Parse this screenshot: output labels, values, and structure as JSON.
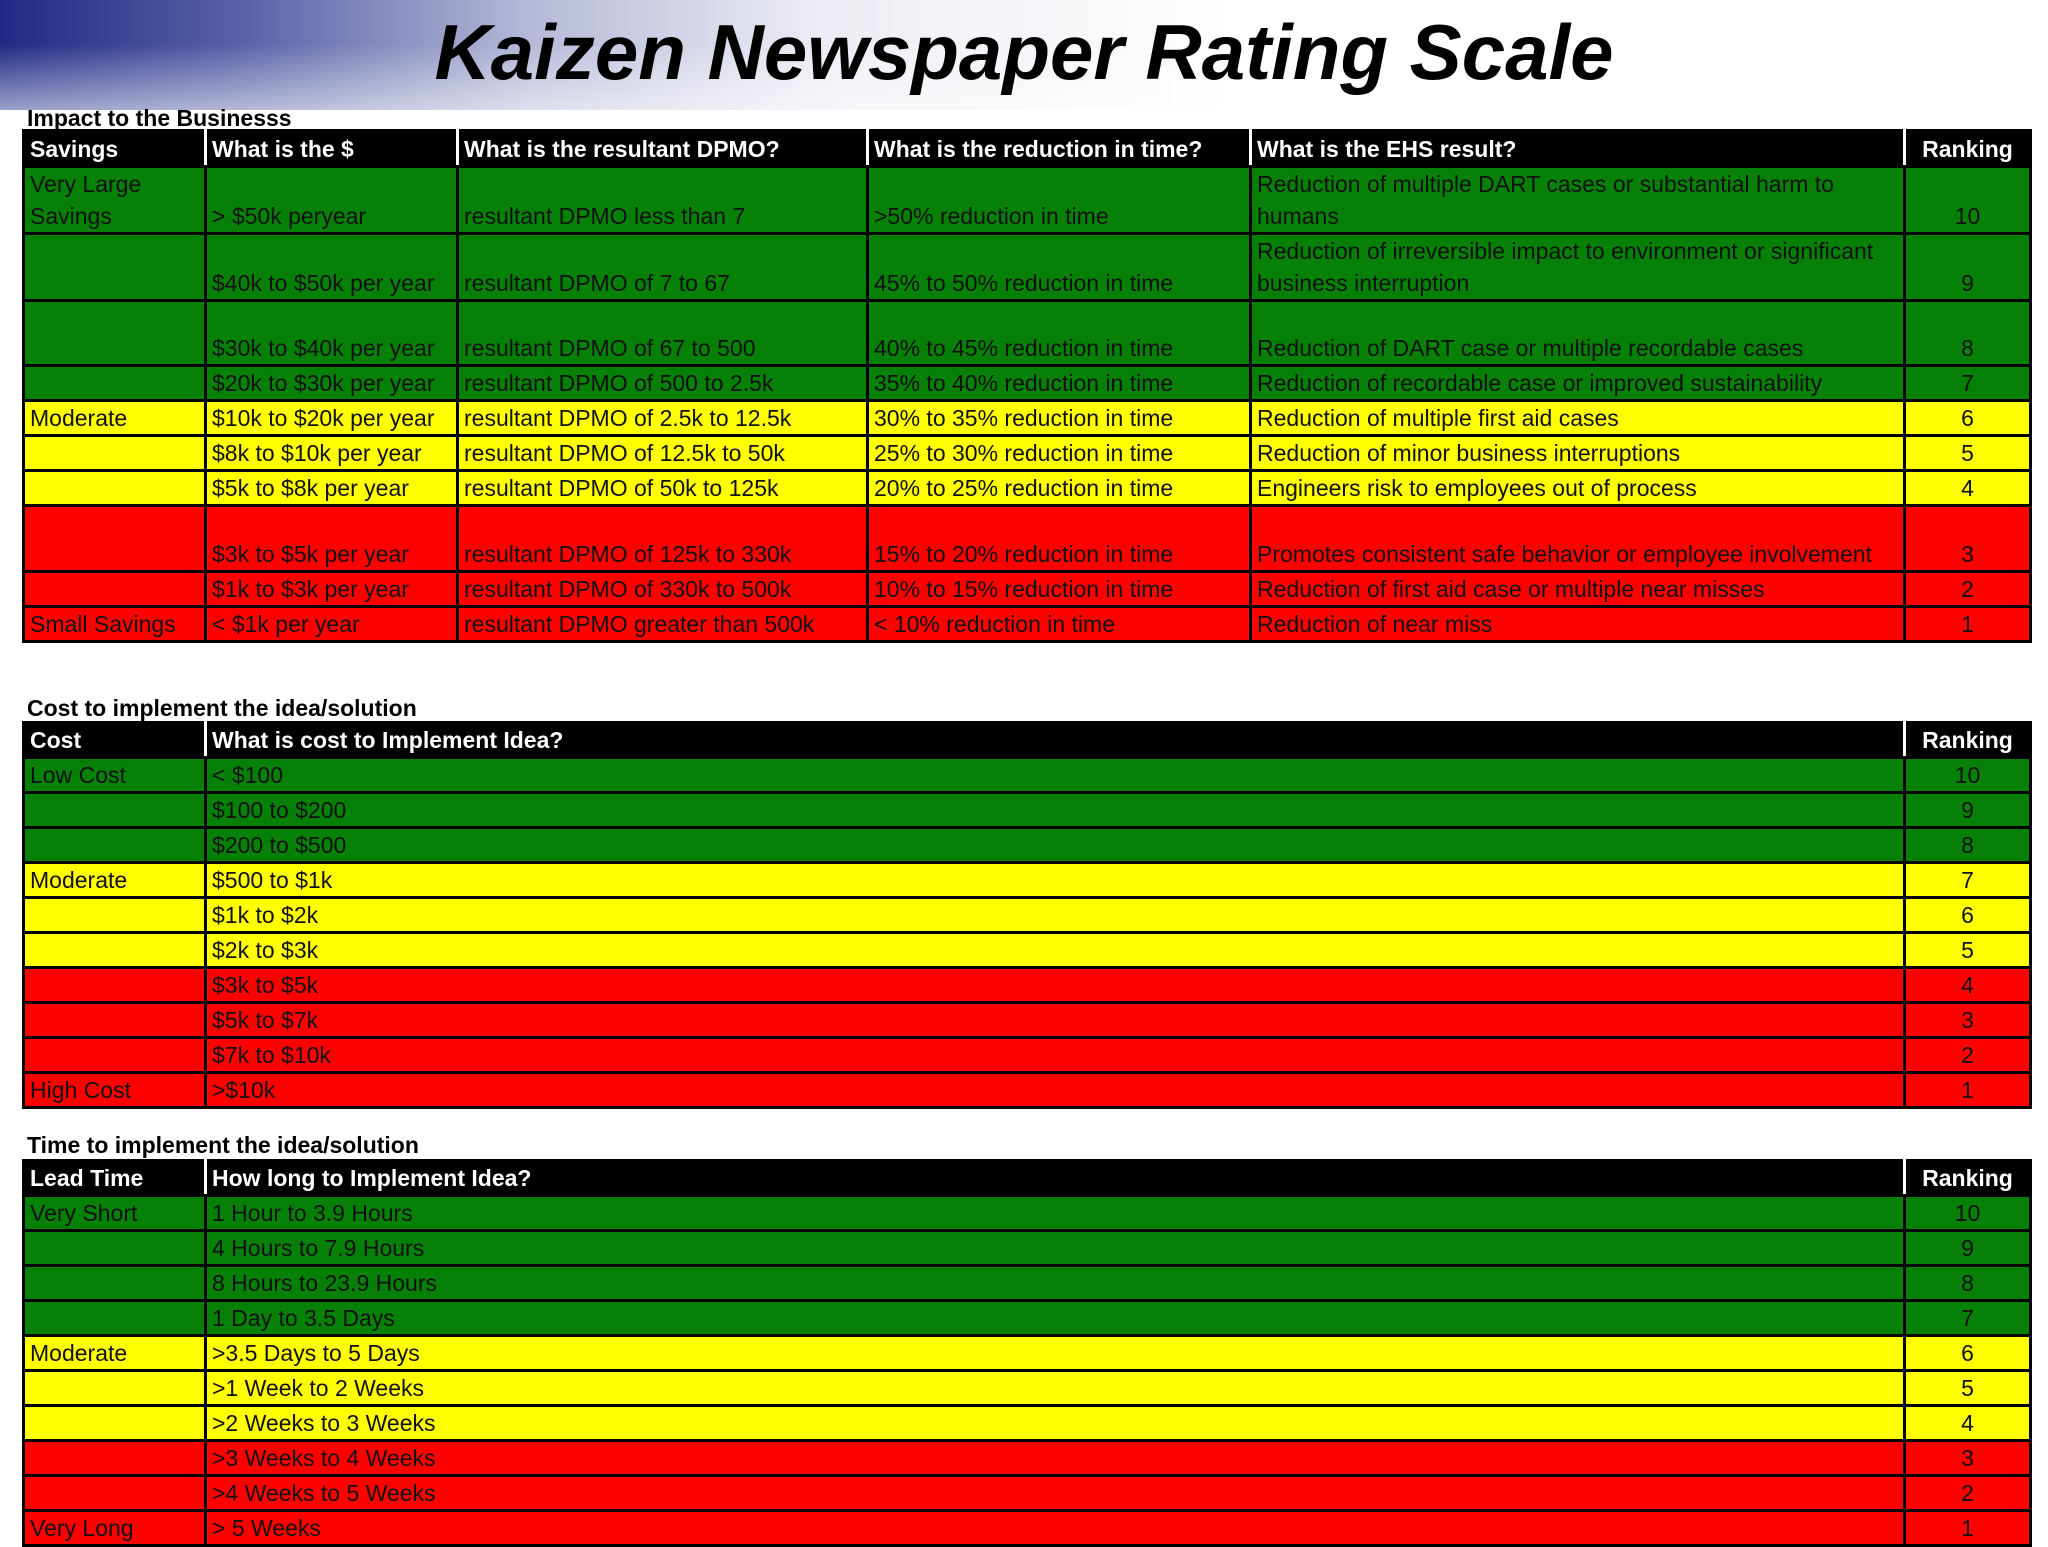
{
  "title": "Kaizen Newspaper Rating Scale",
  "colors": {
    "green": "#078008",
    "yellow": "#ffff00",
    "red": "#fd0000",
    "header": "#000000"
  },
  "impact": {
    "section_label": "Impact to the Businesss",
    "headers": [
      "Savings",
      "What is the $",
      "What is the resultant DPMO?",
      "What is the reduction in time?",
      "What is the EHS result?",
      "Ranking"
    ],
    "rows": [
      {
        "color": "green",
        "category": "Very Large Savings",
        "dollars": "> $50k peryear",
        "dpmo": "resultant DPMO less than 7",
        "time": ">50% reduction in time",
        "ehs": "Reduction of multiple DART cases or substantial harm to humans",
        "rank": "10"
      },
      {
        "color": "green",
        "category": "",
        "dollars": "$40k to $50k per year",
        "dpmo": "resultant DPMO of 7 to 67",
        "time": "45% to 50% reduction in time",
        "ehs": "Reduction of irreversible impact to environment or significant business interruption",
        "rank": "9"
      },
      {
        "color": "green",
        "category": "",
        "dollars": "$30k to $40k per year",
        "dpmo": "resultant DPMO of 67 to 500",
        "time": "40% to 45% reduction in time",
        "ehs": "Reduction of DART case or multiple recordable cases",
        "rank": "8"
      },
      {
        "color": "green",
        "category": "",
        "dollars": "$20k to $30k per year",
        "dpmo": "resultant DPMO of 500 to 2.5k",
        "time": "35% to 40% reduction in time",
        "ehs": "Reduction of recordable case or improved sustainability",
        "rank": "7"
      },
      {
        "color": "yellow",
        "category": "Moderate",
        "dollars": "$10k to $20k per year",
        "dpmo": "resultant DPMO of 2.5k to 12.5k",
        "time": "30% to 35% reduction in time",
        "ehs": "Reduction of multiple first aid cases",
        "rank": "6"
      },
      {
        "color": "yellow",
        "category": "",
        "dollars": "$8k to $10k per year",
        "dpmo": "resultant DPMO of 12.5k to 50k",
        "time": "25% to 30% reduction in time",
        "ehs": "Reduction of minor business interruptions",
        "rank": "5"
      },
      {
        "color": "yellow",
        "category": "",
        "dollars": "$5k to $8k per year",
        "dpmo": "resultant DPMO of 50k to 125k",
        "time": "20% to 25% reduction in time",
        "ehs": "Engineers risk to employees out of process",
        "rank": "4"
      },
      {
        "color": "red",
        "category": "",
        "dollars": "$3k to $5k per year",
        "dpmo": "resultant DPMO of 125k to 330k",
        "time": "15% to 20% reduction in time",
        "ehs": "Promotes consistent safe behavior or employee involvement",
        "rank": "3"
      },
      {
        "color": "red",
        "category": "",
        "dollars": "$1k to $3k per year",
        "dpmo": "resultant DPMO of 330k to 500k",
        "time": "10%  to 15% reduction in time",
        "ehs": "Reduction of first aid case or multiple near misses",
        "rank": "2"
      },
      {
        "color": "red",
        "category": "Small Savings",
        "dollars": " < $1k per year",
        "dpmo": "resultant DPMO greater than 500k",
        "time": "< 10% reduction in time",
        "ehs": "Reduction of near miss",
        "rank": "1"
      }
    ]
  },
  "cost": {
    "section_label": "Cost to implement the idea/solution",
    "headers": [
      "Cost",
      "What is cost to Implement Idea?",
      "Ranking"
    ],
    "rows": [
      {
        "color": "green",
        "category": "Low Cost",
        "value": " < $100",
        "rank": "10"
      },
      {
        "color": "green",
        "category": "",
        "value": "$100 to $200",
        "rank": "9"
      },
      {
        "color": "green",
        "category": "",
        "value": "$200 to $500",
        "rank": "8"
      },
      {
        "color": "yellow",
        "category": "Moderate",
        "value": "$500 to $1k",
        "rank": "7"
      },
      {
        "color": "yellow",
        "category": "",
        "value": "$1k to $2k",
        "rank": "6"
      },
      {
        "color": "yellow",
        "category": "",
        "value": "$2k to $3k",
        "rank": "5"
      },
      {
        "color": "red",
        "category": "",
        "value": "$3k to $5k",
        "rank": "4"
      },
      {
        "color": "red",
        "category": "",
        "value": "$5k to $7k",
        "rank": "3"
      },
      {
        "color": "red",
        "category": "",
        "value": "$7k to $10k",
        "rank": "2"
      },
      {
        "color": "red",
        "category": "High Cost",
        "value": ">$10k",
        "rank": "1"
      }
    ]
  },
  "time": {
    "section_label": "Time to implement the idea/solution",
    "headers": [
      "Lead Time",
      "How long to Implement Idea?",
      "Ranking"
    ],
    "rows": [
      {
        "color": "green",
        "category": "Very Short",
        "value": "1 Hour to 3.9 Hours",
        "rank": "10"
      },
      {
        "color": "green",
        "category": "",
        "value": "4 Hours to 7.9 Hours",
        "rank": "9"
      },
      {
        "color": "green",
        "category": "",
        "value": "8 Hours to 23.9 Hours",
        "rank": "8"
      },
      {
        "color": "green",
        "category": "",
        "value": "1 Day to 3.5 Days",
        "rank": "7"
      },
      {
        "color": "yellow",
        "category": "Moderate",
        "value": ">3.5 Days to 5 Days",
        "rank": "6"
      },
      {
        "color": "yellow",
        "category": "",
        "value": ">1 Week to 2 Weeks",
        "rank": "5"
      },
      {
        "color": "yellow",
        "category": "",
        "value": ">2 Weeks to 3 Weeks",
        "rank": "4"
      },
      {
        "color": "red",
        "category": "",
        "value": ">3 Weeks to 4 Weeks",
        "rank": "3"
      },
      {
        "color": "red",
        "category": "",
        "value": ">4 Weeks to 5 Weeks",
        "rank": "2"
      },
      {
        "color": "red",
        "category": "Very Long",
        "value": "> 5 Weeks",
        "rank": "1"
      }
    ]
  }
}
